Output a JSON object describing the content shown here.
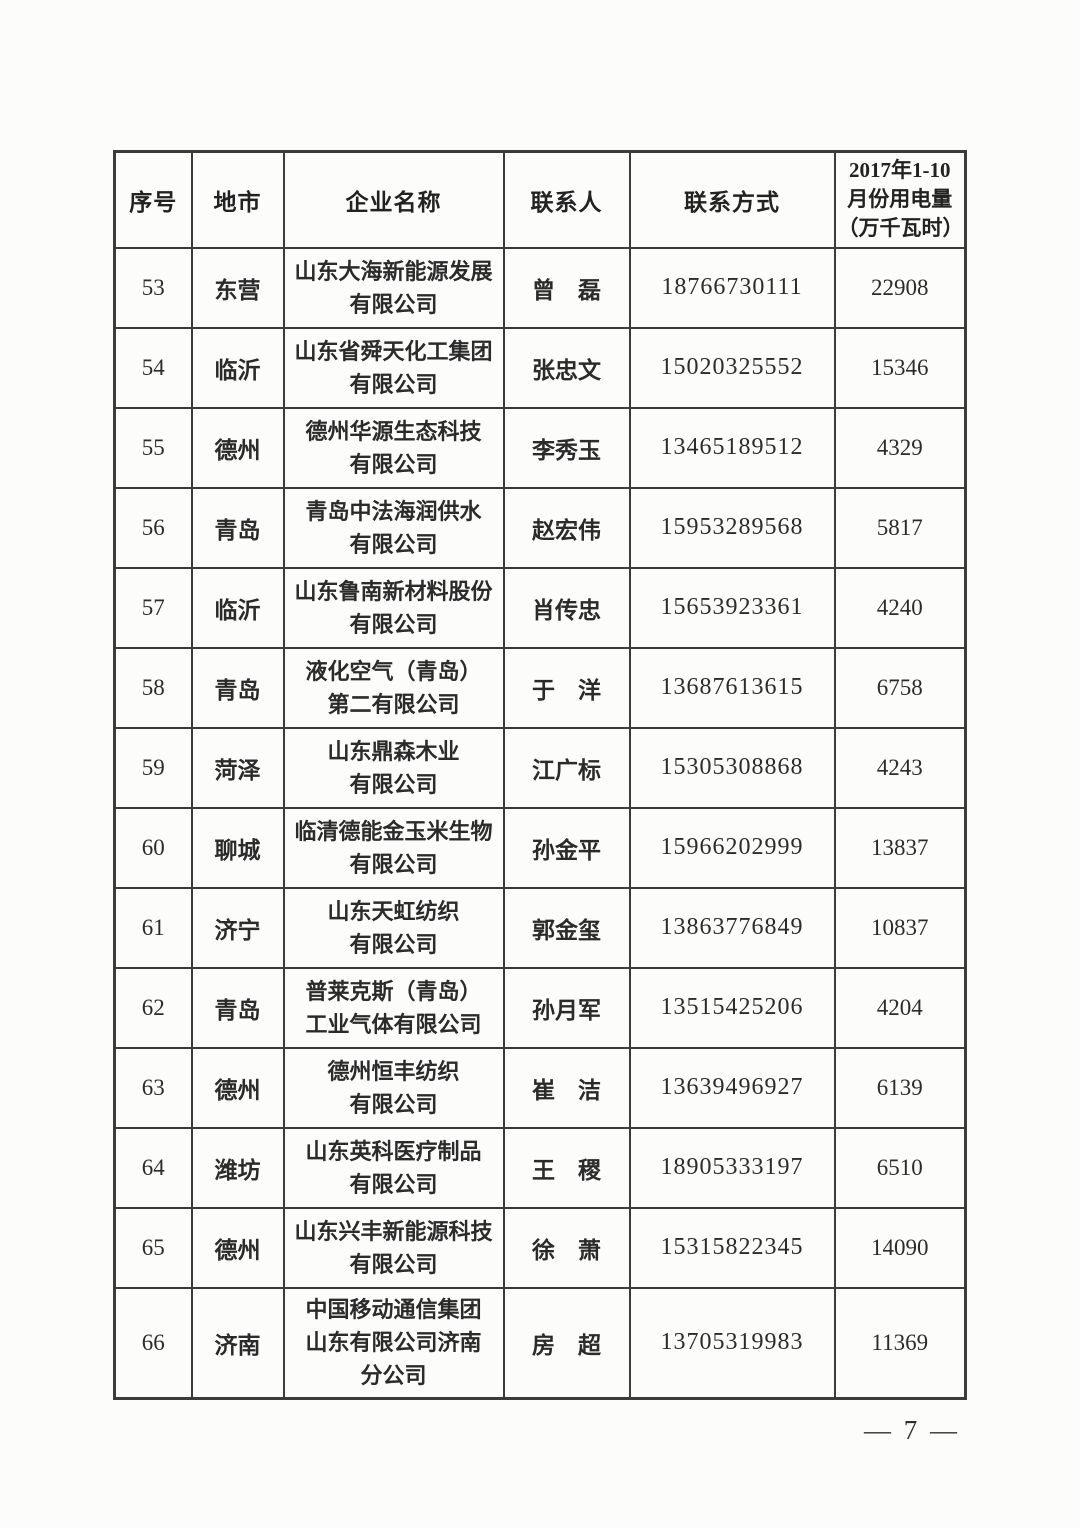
{
  "page": {
    "number_label": "— 7 —"
  },
  "table": {
    "headers": [
      "序号",
      "地市",
      "企业名称",
      "联系人",
      "联系方式",
      "2017年1-10\n月份用电量\n（万千瓦时）"
    ],
    "rows": [
      {
        "no": "53",
        "city": "东营",
        "company": "山东大海新能源发展\n有限公司",
        "contact": "曾　磊",
        "phone": "18766730111",
        "usage": "22908"
      },
      {
        "no": "54",
        "city": "临沂",
        "company": "山东省舜天化工集团\n有限公司",
        "contact": "张忠文",
        "phone": "15020325552",
        "usage": "15346"
      },
      {
        "no": "55",
        "city": "德州",
        "company": "德州华源生态科技\n有限公司",
        "contact": "李秀玉",
        "phone": "13465189512",
        "usage": "4329"
      },
      {
        "no": "56",
        "city": "青岛",
        "company": "青岛中法海润供水\n有限公司",
        "contact": "赵宏伟",
        "phone": "15953289568",
        "usage": "5817"
      },
      {
        "no": "57",
        "city": "临沂",
        "company": "山东鲁南新材料股份\n有限公司",
        "contact": "肖传忠",
        "phone": "15653923361",
        "usage": "4240"
      },
      {
        "no": "58",
        "city": "青岛",
        "company": "液化空气（青岛）\n第二有限公司",
        "contact": "于　洋",
        "phone": "13687613615",
        "usage": "6758"
      },
      {
        "no": "59",
        "city": "菏泽",
        "company": "山东鼎森木业\n有限公司",
        "contact": "江广标",
        "phone": "15305308868",
        "usage": "4243"
      },
      {
        "no": "60",
        "city": "聊城",
        "company": "临清德能金玉米生物\n有限公司",
        "contact": "孙金平",
        "phone": "15966202999",
        "usage": "13837"
      },
      {
        "no": "61",
        "city": "济宁",
        "company": "山东天虹纺织\n有限公司",
        "contact": "郭金玺",
        "phone": "13863776849",
        "usage": "10837"
      },
      {
        "no": "62",
        "city": "青岛",
        "company": "普莱克斯（青岛）\n工业气体有限公司",
        "contact": "孙月军",
        "phone": "13515425206",
        "usage": "4204"
      },
      {
        "no": "63",
        "city": "德州",
        "company": "德州恒丰纺织\n有限公司",
        "contact": "崔　洁",
        "phone": "13639496927",
        "usage": "6139"
      },
      {
        "no": "64",
        "city": "潍坊",
        "company": "山东英科医疗制品\n有限公司",
        "contact": "王　稷",
        "phone": "18905333197",
        "usage": "6510"
      },
      {
        "no": "65",
        "city": "德州",
        "company": "山东兴丰新能源科技\n有限公司",
        "contact": "徐　萧",
        "phone": "15315822345",
        "usage": "14090"
      },
      {
        "no": "66",
        "city": "济南",
        "company": "中国移动通信集团\n山东有限公司济南\n分公司",
        "contact": "房　超",
        "phone": "13705319983",
        "usage": "11369"
      }
    ]
  }
}
